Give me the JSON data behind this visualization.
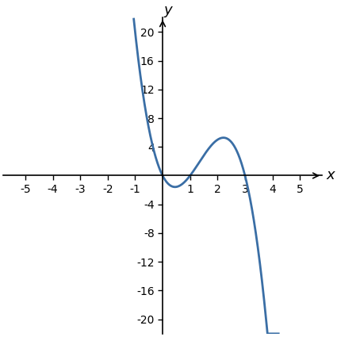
{
  "title": "",
  "xlabel": "x",
  "ylabel": "y",
  "xlim": [
    -5.8,
    5.8
  ],
  "ylim": [
    -22,
    22
  ],
  "xticks": [
    -5,
    -4,
    -3,
    -2,
    -1,
    1,
    2,
    3,
    4,
    5
  ],
  "yticks": [
    -20,
    -16,
    -12,
    -8,
    -4,
    4,
    8,
    12,
    16,
    20
  ],
  "line_color": "#3a6ea5",
  "line_width": 2.0,
  "x_start": -1.05,
  "x_end": 4.22,
  "background_color": "#ffffff",
  "coeff": -2.5,
  "figsize": [
    4.25,
    4.25
  ],
  "dpi": 100,
  "tick_fontsize": 10,
  "label_fontsize": 13
}
